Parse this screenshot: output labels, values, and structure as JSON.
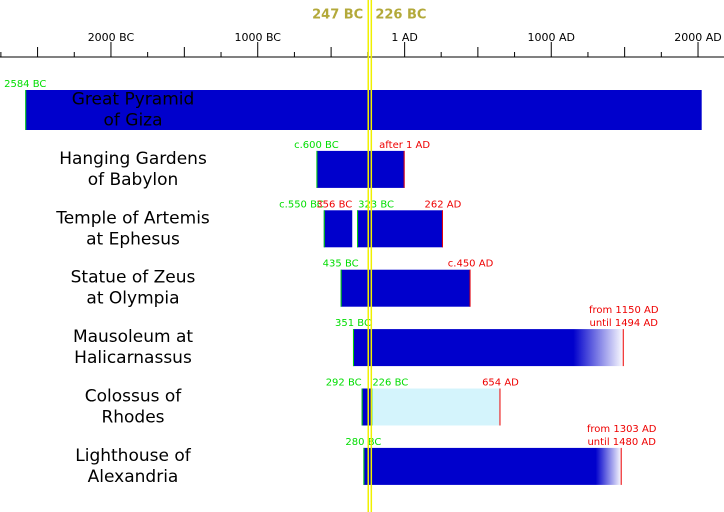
{
  "chart_data": {
    "type": "timeline",
    "xlim": [
      -2756,
      2177
    ],
    "xticks": [
      {
        "value": -2000,
        "label": "2000 BC"
      },
      {
        "value": -1000,
        "label": "1000 BC"
      },
      {
        "value": 1,
        "label": "1 AD"
      },
      {
        "value": 1000,
        "label": "1000 AD"
      },
      {
        "value": 2000,
        "label": "2000 AD"
      }
    ],
    "xminor": [
      -2750,
      -2500,
      -2250,
      -1750,
      -1500,
      -1250,
      -750,
      -500,
      -250,
      250,
      500,
      750,
      1250,
      1500,
      1750
    ],
    "markers": [
      {
        "value": -247,
        "label": "247 BC"
      },
      {
        "value": -226,
        "label": "226 BC"
      }
    ],
    "marker_color": "#f0f000",
    "start_color": "#00dd00",
    "end_color": "#ee0000",
    "rows": [
      {
        "name": [
          "Great Pyramid",
          "of Giza"
        ],
        "segments": [
          {
            "start": -2584,
            "end": 2025,
            "start_label": "2584 BC",
            "color": "#0000cc"
          }
        ]
      },
      {
        "name": [
          "Hanging Gardens",
          "of Babylon"
        ],
        "segments": [
          {
            "start": -600,
            "end": 1,
            "start_label": "c.600 BC",
            "end_label": "after 1 AD",
            "color": "#0000cc"
          }
        ]
      },
      {
        "name": [
          "Temple of Artemis",
          "at Ephesus"
        ],
        "segments": [
          {
            "start": -550,
            "end": -356,
            "start_label": "c.550 BC",
            "end_label": "356 BC",
            "color": "#0000cc"
          },
          {
            "start": -323,
            "end": 262,
            "start_label": "323 BC",
            "end_label": "262 AD",
            "color": "#0000cc"
          }
        ]
      },
      {
        "name": [
          "Statue of Zeus",
          "at Olympia"
        ],
        "segments": [
          {
            "start": -435,
            "end": 450,
            "start_label": "435 BC",
            "end_label": "c.450 AD",
            "color": "#0000cc"
          }
        ]
      },
      {
        "name": [
          "Mausoleum at",
          "Halicarnassus"
        ],
        "segments": [
          {
            "start": -351,
            "end": 1494,
            "fade_from": 1150,
            "start_label": "351 BC",
            "fade_label": "from 1150 AD",
            "end_label": "until 1494 AD",
            "color": "#0000cc"
          }
        ]
      },
      {
        "name": [
          "Colossus of",
          "Rhodes"
        ],
        "segments": [
          {
            "start": -292,
            "end": -226,
            "start_label": "292 BC",
            "color": "#0000cc"
          },
          {
            "start": -226,
            "end": 654,
            "start_label": "226 BC",
            "end_label": "654 AD",
            "color": "#d4f4fc"
          }
        ]
      },
      {
        "name": [
          "Lighthouse of",
          "Alexandria"
        ],
        "segments": [
          {
            "start": -280,
            "end": 1480,
            "fade_from": 1303,
            "start_label": "280 BC",
            "fade_label": "from 1303 AD",
            "end_label": "until 1480 AD",
            "color": "#0000cc"
          }
        ]
      }
    ]
  }
}
